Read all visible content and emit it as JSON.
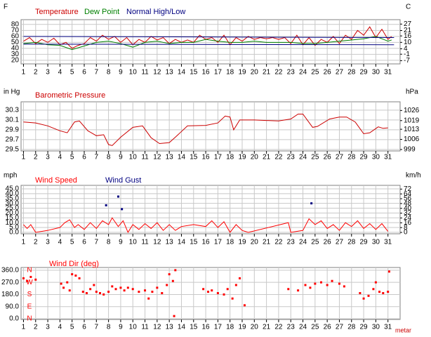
{
  "chart_data": [
    {
      "type": "line",
      "ylabel": "F",
      "y2label": "C",
      "grid": true,
      "xlim": [
        0.8,
        32
      ],
      "xticks": [
        1,
        2,
        3,
        4,
        5,
        6,
        7,
        8,
        9,
        10,
        11,
        12,
        13,
        14,
        15,
        16,
        17,
        18,
        19,
        20,
        21,
        22,
        23,
        24,
        25,
        26,
        27,
        28,
        29,
        30,
        31
      ],
      "ylim": [
        14,
        88
      ],
      "yticks": [
        80,
        70,
        60,
        50,
        40,
        30,
        20
      ],
      "y2lim": [
        -10,
        31.1
      ],
      "y2ticks": [
        27,
        21,
        16,
        10,
        4,
        -1,
        -7
      ],
      "series": [
        {
          "name": "Temperature",
          "color": "#cc0000",
          "x": [
            1,
            1.5,
            2,
            2.5,
            3,
            3.5,
            4,
            4.5,
            5,
            5.5,
            6,
            6.5,
            7,
            7.5,
            8,
            8.5,
            9,
            9.5,
            10,
            10.5,
            11,
            11.5,
            12,
            12.5,
            13,
            13.5,
            14,
            14.5,
            15,
            15.5,
            16,
            16.5,
            17,
            17.5,
            18,
            18.5,
            19,
            19.5,
            20,
            20.5,
            21,
            21.5,
            22,
            22.5,
            23,
            23.5,
            24,
            24.5,
            25,
            25.5,
            26,
            26.5,
            27,
            27.5,
            28,
            28.5,
            29,
            29.5,
            30,
            30.5,
            31,
            31.3
          ],
          "values": [
            52,
            58,
            48,
            55,
            50,
            57,
            46,
            50,
            40,
            45,
            48,
            58,
            52,
            62,
            55,
            60,
            50,
            58,
            46,
            55,
            50,
            60,
            54,
            58,
            48,
            55,
            50,
            54,
            50,
            62,
            55,
            58,
            50,
            62,
            46,
            58,
            52,
            60,
            55,
            58,
            56,
            58,
            55,
            58,
            48,
            62,
            46,
            58,
            45,
            55,
            50,
            60,
            48,
            62,
            55,
            70,
            62,
            76,
            58,
            72,
            55,
            60
          ]
        },
        {
          "name": "Dew Point",
          "color": "#008000",
          "x": [
            1,
            2,
            3,
            4,
            5,
            6,
            7,
            8,
            9,
            10,
            11,
            12,
            13,
            14,
            15,
            16,
            17,
            18,
            19,
            20,
            21,
            22,
            23,
            24,
            25,
            26,
            27,
            28,
            29,
            30,
            31,
            31.3
          ],
          "values": [
            48,
            50,
            46,
            45,
            38,
            44,
            50,
            52,
            48,
            42,
            50,
            52,
            48,
            50,
            50,
            55,
            52,
            50,
            50,
            52,
            50,
            50,
            50,
            48,
            48,
            50,
            52,
            54,
            56,
            60,
            52,
            54
          ]
        },
        {
          "name": "Normal High/Low",
          "color": "#000080",
          "x": [
            1,
            31.5
          ],
          "values": [
            60,
            58
          ],
          "low": [
            47,
            46
          ]
        }
      ]
    },
    {
      "type": "line",
      "ylabel": "in Hg",
      "y2label": "hPa",
      "grid": true,
      "xlim": [
        0.8,
        32
      ],
      "xticks": [
        1,
        2,
        3,
        4,
        5,
        6,
        7,
        8,
        9,
        10,
        11,
        12,
        13,
        14,
        15,
        16,
        17,
        18,
        19,
        20,
        21,
        22,
        23,
        24,
        25,
        26,
        27,
        28,
        29,
        30,
        31
      ],
      "ylim": [
        29.47,
        30.47
      ],
      "yticks": [
        30.3,
        30.1,
        29.9,
        29.7,
        29.5
      ],
      "y2lim": [
        998,
        1032
      ],
      "y2ticks": [
        1026,
        1019,
        1013,
        1006,
        999
      ],
      "series": [
        {
          "name": "Barometric Pressure",
          "color": "#cc0000",
          "x": [
            1,
            2,
            3,
            4,
            4.6,
            5.2,
            5.6,
            6.3,
            7,
            7.6,
            8,
            8.3,
            9,
            10,
            10.8,
            11.5,
            12.2,
            13,
            13.5,
            14.5,
            16,
            17,
            17.6,
            18,
            18.3,
            18.8,
            20,
            22,
            23,
            23.6,
            24,
            24.8,
            25.2,
            26.2,
            27,
            27.6,
            28.3,
            29,
            29.5,
            30.2,
            30.6,
            31
          ],
          "values": [
            30.06,
            30.04,
            29.98,
            29.88,
            29.84,
            30.06,
            30.08,
            29.88,
            29.78,
            29.8,
            29.6,
            29.58,
            29.75,
            29.95,
            29.98,
            29.74,
            29.62,
            29.64,
            29.75,
            29.98,
            29.99,
            30.04,
            30.18,
            30.16,
            29.9,
            30.1,
            30.1,
            30.08,
            30.12,
            30.22,
            30.22,
            29.95,
            29.97,
            30.12,
            30.16,
            30.16,
            30.06,
            29.82,
            29.84,
            29.96,
            29.93,
            29.94
          ]
        }
      ]
    },
    {
      "type": "line",
      "ylabel": "mph",
      "y2label": "km/h",
      "grid": true,
      "xlim": [
        0.8,
        32
      ],
      "xticks": [
        1,
        2,
        3,
        4,
        5,
        6,
        7,
        8,
        9,
        10,
        11,
        12,
        13,
        14,
        15,
        16,
        17,
        18,
        19,
        20,
        21,
        22,
        23,
        24,
        25,
        26,
        27,
        28,
        29,
        30,
        31
      ],
      "ylim": [
        -1.5,
        48.6
      ],
      "yticks": [
        {
          "value": 45,
          "label": "45.0"
        },
        {
          "value": 40,
          "label": "40.0"
        },
        {
          "value": 35,
          "label": "35.0"
        },
        {
          "value": 30,
          "label": "30.0"
        },
        {
          "value": 25,
          "label": "25.0"
        },
        {
          "value": 20,
          "label": "20.0"
        },
        {
          "value": 15,
          "label": "15.0"
        },
        {
          "value": 10,
          "label": "10.0"
        },
        {
          "value": 5,
          "label": "5.0"
        },
        {
          "value": 0,
          "label": "0.0"
        }
      ],
      "y2lim": [
        -2.3,
        78.2
      ],
      "y2ticks": [
        72,
        64,
        56,
        48,
        40,
        32,
        24,
        16,
        8,
        0
      ],
      "series": [
        {
          "name": "Wind Speed",
          "color": "#ff0000",
          "x": [
            1,
            1.3,
            1.6,
            2,
            3,
            4,
            4.4,
            4.8,
            5.2,
            5.5,
            6,
            6.5,
            7,
            7.5,
            8,
            8.3,
            8.8,
            9.2,
            9.6,
            10,
            10.5,
            11,
            11.5,
            12,
            12.5,
            13,
            13.5,
            14,
            15,
            16,
            16.5,
            17,
            17.5,
            18,
            18.5,
            19,
            19.5,
            22.8,
            23,
            24,
            24.5,
            25,
            25.5,
            26,
            26.5,
            27,
            27.5,
            28,
            28.5,
            29,
            29.5,
            30,
            30.5,
            31
          ],
          "values": [
            8,
            4,
            8,
            0,
            2,
            5,
            10,
            13,
            5,
            8,
            3,
            10,
            4,
            12,
            8,
            15,
            6,
            12,
            0,
            8,
            3,
            9,
            4,
            10,
            2,
            8,
            2,
            6,
            8,
            6,
            12,
            5,
            11,
            0,
            8,
            2,
            0,
            10,
            0,
            2,
            14,
            8,
            12,
            4,
            8,
            2,
            10,
            6,
            12,
            4,
            9,
            3,
            9,
            1
          ]
        },
        {
          "name": "Wind Gust",
          "color": "#000080",
          "mode": "markers",
          "x": [
            7.8,
            8.8,
            9.1,
            24.7
          ],
          "values": [
            28,
            37,
            24,
            30
          ]
        }
      ]
    },
    {
      "type": "scatter",
      "grid": true,
      "xlim": [
        0.8,
        32
      ],
      "xticks": [
        1,
        2,
        3,
        4,
        5,
        6,
        7,
        8,
        9,
        10,
        11,
        12,
        13,
        14,
        15,
        16,
        17,
        18,
        19,
        20,
        21,
        22,
        23,
        24,
        25,
        26,
        27,
        28,
        29,
        30,
        31
      ],
      "ylim": [
        -5,
        380
      ],
      "yticks": [
        {
          "value": 360,
          "label": "360.0"
        },
        {
          "value": 270,
          "label": "270.0"
        },
        {
          "value": 180,
          "label": "180.0"
        },
        {
          "value": 90,
          "label": "90.0"
        },
        {
          "value": 0,
          "label": "0.0"
        }
      ],
      "y2ticks": [
        {
          "value": 360,
          "label": "N"
        },
        {
          "value": 270,
          "label": "W"
        },
        {
          "value": 180,
          "label": "S"
        },
        {
          "value": 90,
          "label": "E"
        },
        {
          "value": 0,
          "label": "N"
        }
      ],
      "note": "metar",
      "series": [
        {
          "name": "Wind Dir (deg)",
          "color": "#ff0000",
          "x": [
            1,
            1.3,
            1.6,
            2,
            4.1,
            4.3,
            4.6,
            4.8,
            5,
            5.3,
            5.6,
            5.9,
            6.2,
            6.5,
            6.8,
            7,
            7.3,
            7.6,
            8,
            8.3,
            8.6,
            9,
            9.3,
            9.6,
            10,
            10.5,
            11,
            11.3,
            11.6,
            12,
            12.4,
            12.8,
            13,
            13.3,
            13.4,
            13.5,
            15.8,
            16.2,
            16.5,
            17,
            17.5,
            17.8,
            18.2,
            18.5,
            18.8,
            19.2,
            22.8,
            23.6,
            24.2,
            24.6,
            25,
            25.5,
            26,
            26.4,
            27,
            27.4,
            28.7,
            29,
            29.4,
            29.8,
            30,
            30.3,
            30.6,
            31,
            31.1
          ],
          "values": [
            300,
            280,
            310,
            290,
            260,
            230,
            270,
            210,
            330,
            320,
            300,
            200,
            190,
            220,
            250,
            200,
            190,
            180,
            200,
            240,
            220,
            230,
            210,
            230,
            220,
            200,
            210,
            150,
            200,
            230,
            190,
            250,
            330,
            280,
            20,
            360,
            220,
            200,
            210,
            190,
            180,
            220,
            150,
            250,
            300,
            100,
            220,
            210,
            250,
            230,
            260,
            270,
            250,
            280,
            260,
            240,
            190,
            150,
            170,
            220,
            270,
            200,
            190,
            200,
            350
          ]
        }
      ]
    }
  ]
}
